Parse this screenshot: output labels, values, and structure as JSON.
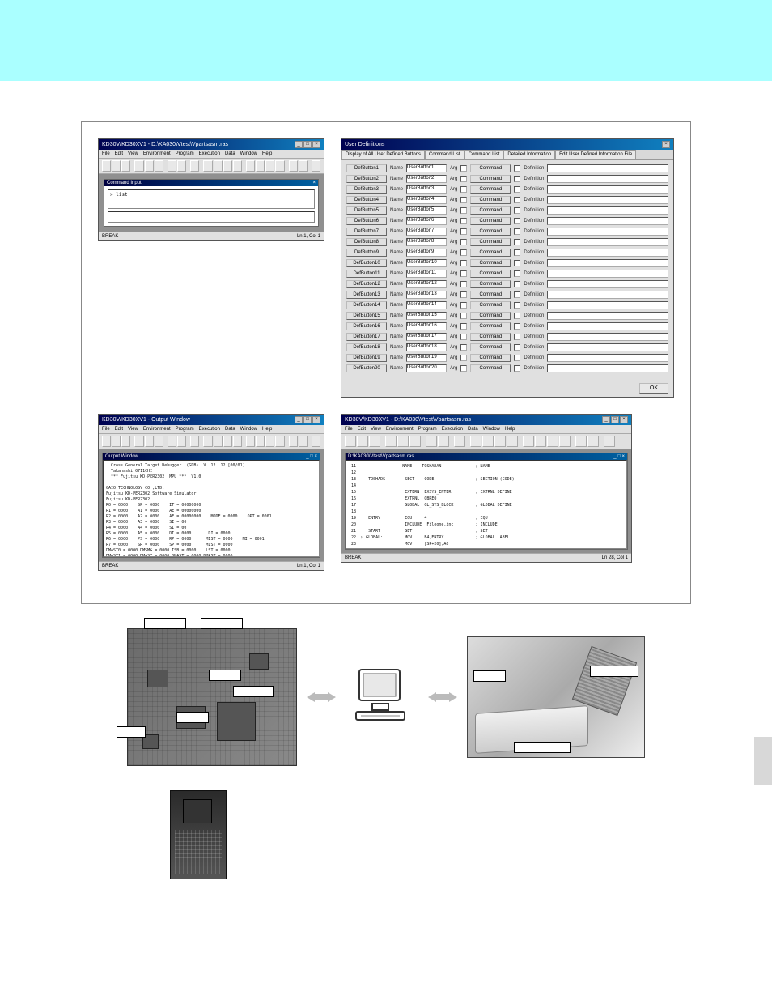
{
  "banner": {
    "bg": "#aaffff"
  },
  "figure": {
    "caption": "",
    "cmd_window": {
      "title": "KD30V/KD30XV1 - D:\\KA030\\Vtest\\Vpartsasm.ras",
      "menus": [
        "File",
        "Edit",
        "View",
        "Environment",
        "Program",
        "Execution",
        "Data",
        "Window",
        "Help"
      ],
      "inner_title": "Command Input",
      "input_text": "> list",
      "status_left": "BREAK",
      "status_right": "Ln 1, Col 1"
    },
    "userdef": {
      "title": "User Definitions",
      "tabs": [
        "Display of All User Defined Buttons",
        "Command List",
        "Command List",
        "Detailed Information",
        "Edit User Defined Information File"
      ],
      "rows": [
        {
          "btn": "DefButton1",
          "name": "UserButton1",
          "arg": "",
          "cmd": "Command",
          "def": "Definition"
        },
        {
          "btn": "DefButton2",
          "name": "UserButton2",
          "arg": "",
          "cmd": "Command",
          "def": "Definition"
        },
        {
          "btn": "DefButton3",
          "name": "UserButton3",
          "arg": "",
          "cmd": "Command",
          "def": "Definition"
        },
        {
          "btn": "DefButton4",
          "name": "UserButton4",
          "arg": "",
          "cmd": "Command",
          "def": "Definition"
        },
        {
          "btn": "DefButton5",
          "name": "UserButton5",
          "arg": "",
          "cmd": "Command",
          "def": "Definition"
        },
        {
          "btn": "DefButton6",
          "name": "UserButton6",
          "arg": "",
          "cmd": "Command",
          "def": "Definition"
        },
        {
          "btn": "DefButton7",
          "name": "UserButton7",
          "arg": "",
          "cmd": "Command",
          "def": "Definition"
        },
        {
          "btn": "DefButton8",
          "name": "UserButton8",
          "arg": "",
          "cmd": "Command",
          "def": "Definition"
        },
        {
          "btn": "DefButton9",
          "name": "UserButton9",
          "arg": "",
          "cmd": "Command",
          "def": "Definition"
        },
        {
          "btn": "DefButton10",
          "name": "UserButton10",
          "arg": "",
          "cmd": "Command",
          "def": "Definition"
        },
        {
          "btn": "DefButton11",
          "name": "UserButton11",
          "arg": "",
          "cmd": "Command",
          "def": "Definition"
        },
        {
          "btn": "DefButton12",
          "name": "UserButton12",
          "arg": "",
          "cmd": "Command",
          "def": "Definition"
        },
        {
          "btn": "DefButton13",
          "name": "UserButton13",
          "arg": "",
          "cmd": "Command",
          "def": "Definition"
        },
        {
          "btn": "DefButton14",
          "name": "UserButton14",
          "arg": "",
          "cmd": "Command",
          "def": "Definition"
        },
        {
          "btn": "DefButton15",
          "name": "UserButton15",
          "arg": "",
          "cmd": "Command",
          "def": "Definition"
        },
        {
          "btn": "DefButton16",
          "name": "UserButton16",
          "arg": "",
          "cmd": "Command",
          "def": "Definition"
        },
        {
          "btn": "DefButton17",
          "name": "UserButton17",
          "arg": "",
          "cmd": "Command",
          "def": "Definition"
        },
        {
          "btn": "DefButton18",
          "name": "UserButton18",
          "arg": "",
          "cmd": "Command",
          "def": "Definition"
        },
        {
          "btn": "DefButton19",
          "name": "UserButton19",
          "arg": "",
          "cmd": "Command",
          "def": "Definition"
        },
        {
          "btn": "DefButton20",
          "name": "UserButton20",
          "arg": "",
          "cmd": "Command",
          "def": "Definition"
        }
      ],
      "labels": {
        "name": "Name",
        "arg": "Arg",
        "cmd": "",
        "def": ""
      },
      "ok": "OK"
    },
    "output_window": {
      "title": "KD30V/KD30XV1 - Output Window",
      "menus": [
        "File",
        "Edit",
        "View",
        "Environment",
        "Program",
        "Execution",
        "Data",
        "Window",
        "Help"
      ],
      "inner_title": "Output Window",
      "text": "  Cross General Target Debugger  (GDB)  V. 12. 12 [00/01]\n  Takahashi 0711CHI\n  *** Fujitsu KD-PER2302  MPU ***  V1.0\n\nGAIO TECHNOLOGY CO.,LTD.\nFujitsu KD-PER2302 Software Simulator\nFujitsu KD-PER2302\nR0 = 0000    SP = 0000    IT = 00000000\nR1 = 0000    A1 = 0000    AE = 00000000\nR2 = 0000    A2 = 0000    AE = 00000000    MODE = 0000    OPT = 0001\nR3 = 0000    A3 = 0000    SI = 00\nR4 = 0000    A4 = 0000    SI = 00\nR5 = 0000    A5 = 0000    DI = 0000       DI = 0000\nR6 = 0000    PS = 0000    RP = 0000      MIST = 0000    MI = 0001\nR7 = 0000    SR = 0000    SP = 0000      MIST = 0000\nDMAST0 = 0000 DMSMG = 0000 ISB = 0000    LST = 0000\nDMAST1 = 0000 DMAST = 0000 DMAST = 0000 DMAST = 0000",
      "status_left": "BREAK",
      "status_right": "Ln 1, Col 1"
    },
    "src_window": {
      "title": "KD30V/KD30XV1 - D:\\KA030\\Vtest\\Vpartsasm.ras",
      "menus": [
        "File",
        "Edit",
        "View",
        "Environment",
        "Program",
        "Execution",
        "Data",
        "Window",
        "Help"
      ],
      "inner_title": "D:\\KA030\\Vtest\\Vpartsasm.ras",
      "text": " 11                   NAME    TOSHADAN              ; NAME\n 12\n 13     TOSHADS        SECT    CODE                 ; SECTION (CODE)\n 14\n 15                    EXTERN  EXSYS_ENTER          ; EXTRNL DEFINE\n 16                    EXTRNL  OBREQ\n 17                    GLOBAL  GL_SYS_BLOCK         ; GLOBAL DEFINE\n 18\n 19     ENTRY          EQU     4                    ; EQU\n 20                    INCLUDE  Fileone.inc         ; INCLUDE\n 21     START          GET                          ; SET\n 22  ▷ GLOBAL:         MOV     B4,ENTRY             ; GLOBAL LABEL\n 23                    MOV     [SP+20],A0\n 24                    MOV     [SP+24],A1\n 25                    MOV     R1,R2\n 26  ▷  ?:             ASD     R0,#                 ; LOCAL LABEL\n 27                    ADD     B1,#0\n 28                    ADD     B1,D+",
      "status_left": "BREAK",
      "status_right": "Ln 28, Col 1"
    }
  },
  "hardware": {
    "board_labels": {
      "tl1": "",
      "tl2": "",
      "mid1": "",
      "mid2": "",
      "bl": "",
      "cpu": ""
    },
    "emu_labels": {
      "left": "",
      "right": "",
      "bottom": ""
    },
    "caption_board": "",
    "caption_emu": ""
  }
}
